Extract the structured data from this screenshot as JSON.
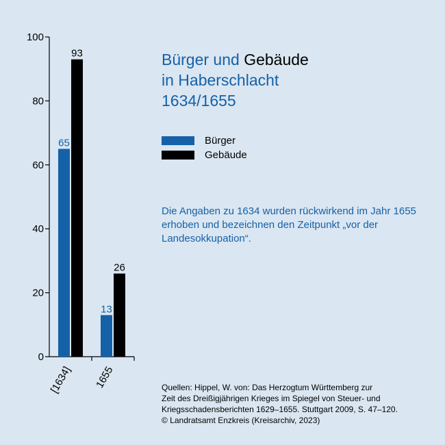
{
  "title": {
    "part1": "Bürger und ",
    "part2": "Gebäude",
    "line2": "in Haberschlacht",
    "line3": "1634/1655"
  },
  "legend": [
    {
      "label": "Bürger",
      "color": "#1561a8"
    },
    {
      "label": "Gebäude",
      "color": "#000000"
    }
  ],
  "note": "Die Angaben zu 1634 wurden rückwirkend im Jahr 1655 erhoben und bezeichnen den Zeitpunkt „vor der Landesokkupation“.",
  "sources": [
    "Quellen: Hippel, W. von: Das Herzogtum Württemberg zur",
    "Zeit des Dreißigjährigen Krieges im Spiegel von Steuer- und",
    "Kriegsschadensberichten 1629–1655. Stuttgart 2009, S. 47–120.",
    "© Landratsamt Enzkreis (Kreisarchiv, 2023)"
  ],
  "chart_data": {
    "type": "bar",
    "categories": [
      "[1634]",
      "1655"
    ],
    "series": [
      {
        "name": "Bürger",
        "values": [
          65,
          13
        ],
        "color": "#1561a8"
      },
      {
        "name": "Gebäude",
        "values": [
          93,
          26
        ],
        "color": "#000000"
      }
    ],
    "ylim": [
      0,
      100
    ],
    "yticks": [
      0,
      20,
      40,
      60,
      80,
      100
    ],
    "label_colors": [
      "#1561a8",
      "#000000"
    ]
  }
}
